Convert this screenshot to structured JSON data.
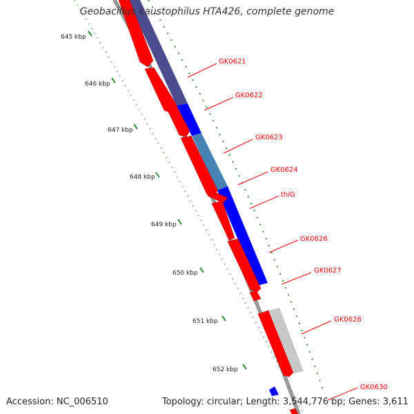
{
  "header": {
    "title": "Geobacillus kaustophilus HTA426, complete genome"
  },
  "footer": {
    "accession_label": "Accession:",
    "accession": "NC_006510",
    "topology_label": "Topology:",
    "topology": "circular",
    "length_label": "Length:",
    "length": "3,544,776 bp",
    "genes_label": "Genes:",
    "genes": "3,611"
  },
  "colors": {
    "forward_gene": "#ff0000",
    "reverse_gene": "#0000ff",
    "cog_dark": "#4b4b8f",
    "cog_steel": "#4682b4",
    "cog_gray": "#c8c8c8",
    "backbone": "#888888",
    "tick": "#2e8b2e",
    "gene_label": "#ee0000"
  },
  "scale": {
    "unit": "kbp",
    "marks": [
      {
        "label": "645 kbp"
      },
      {
        "label": "646 kbp"
      },
      {
        "label": "647 kbp"
      },
      {
        "label": "648 kbp"
      },
      {
        "label": "649 kbp"
      },
      {
        "label": "650 kbp"
      },
      {
        "label": "651 kbp"
      },
      {
        "label": "652 kbp"
      }
    ]
  },
  "gene_labels": [
    {
      "name": "GK0621"
    },
    {
      "name": "GK0622"
    },
    {
      "name": "GK0623"
    },
    {
      "name": "GK0624"
    },
    {
      "name": "thiG"
    },
    {
      "name": "GK0626"
    },
    {
      "name": "GK0627"
    },
    {
      "name": "GK0628"
    },
    {
      "name": "GK0630"
    }
  ]
}
